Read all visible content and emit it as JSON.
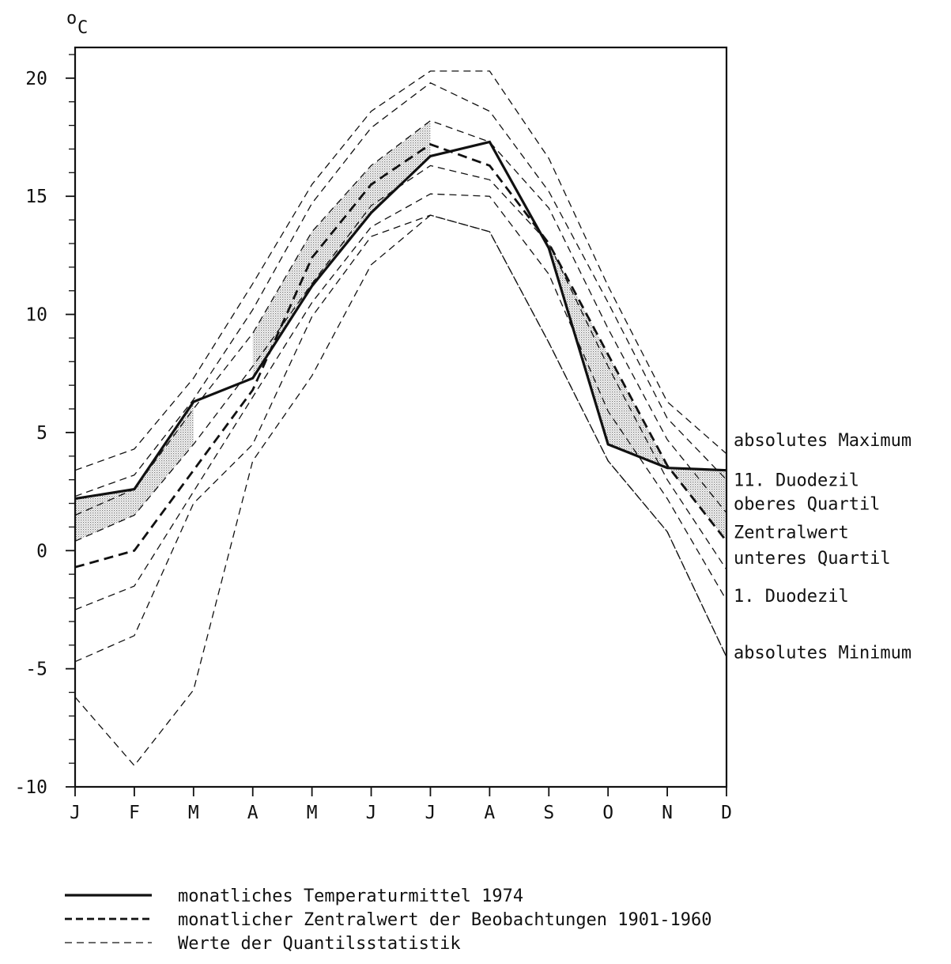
{
  "chart_data": {
    "type": "line",
    "unit_label": {
      "superscript": "o",
      "base": "C"
    },
    "categories": [
      "J",
      "F",
      "M",
      "A",
      "M",
      "J",
      "J",
      "A",
      "S",
      "O",
      "N",
      "D"
    ],
    "ylim": [
      -10,
      21.3
    ],
    "ytick_labels": [
      {
        "value": 20,
        "label": "20"
      },
      {
        "value": 15,
        "label": "15"
      },
      {
        "value": 10,
        "label": "10"
      },
      {
        "value": 5,
        "label": "5"
      },
      {
        "value": 0,
        "label": "0"
      },
      {
        "value": -5,
        "label": "-5"
      },
      {
        "value": -10,
        "label": "-10"
      }
    ],
    "series": [
      {
        "role": "mean-1974",
        "style": "solid",
        "values": [
          2.2,
          2.6,
          6.3,
          7.3,
          11.2,
          14.3,
          16.7,
          17.3,
          12.8,
          4.5,
          3.5,
          3.4
        ]
      },
      {
        "role": "median",
        "style": "bold-dashed",
        "values": [
          -0.7,
          0.0,
          3.4,
          6.8,
          12.4,
          15.5,
          17.2,
          16.3,
          13.0,
          8.3,
          3.6,
          0.4
        ]
      },
      {
        "role": "abs-max",
        "style": "thin-dashed",
        "values": [
          3.4,
          4.3,
          7.3,
          11.3,
          15.5,
          18.6,
          20.3,
          20.3,
          16.6,
          11.2,
          6.3,
          4.1
        ]
      },
      {
        "role": "d11",
        "style": "thin-dashed",
        "values": [
          2.3,
          3.2,
          6.4,
          10.2,
          14.7,
          17.9,
          19.8,
          18.6,
          15.2,
          10.5,
          5.6,
          3.0
        ]
      },
      {
        "role": "q3",
        "style": "thin-dashed",
        "values": [
          1.5,
          2.6,
          6.0,
          9.2,
          13.5,
          16.3,
          18.2,
          17.3,
          14.5,
          9.4,
          4.7,
          1.6
        ]
      },
      {
        "role": "q1",
        "style": "thin-dashed",
        "values": [
          0.4,
          1.5,
          4.5,
          7.8,
          11.3,
          14.6,
          16.3,
          15.7,
          13.0,
          7.8,
          3.0,
          -0.8
        ]
      },
      {
        "role": "d1",
        "style": "thin-dashed",
        "values": [
          -2.5,
          -1.5,
          2.5,
          6.5,
          10.5,
          13.7,
          15.1,
          15.0,
          11.7,
          5.9,
          2.2,
          -2.1
        ]
      },
      {
        "role": "abs-min",
        "style": "thin-dashed",
        "values": [
          -4.7,
          -3.6,
          2.0,
          4.5,
          9.9,
          13.3,
          14.2,
          13.5,
          8.8,
          3.8,
          0.8,
          -4.5
        ]
      },
      {
        "role": "abs-min-low",
        "style": "thin-dashed",
        "values": [
          -6.2,
          -9.1,
          -5.9,
          3.8,
          7.4,
          12.1,
          14.2,
          13.5,
          8.8,
          3.8,
          0.8,
          -4.5
        ]
      }
    ],
    "shaded_bands": [
      {
        "between": [
          "mean-1974",
          "q1"
        ],
        "months": [
          0,
          1,
          2
        ]
      },
      {
        "between": [
          "mean-1974",
          "q3"
        ],
        "months": [
          3,
          4,
          5,
          6
        ]
      },
      {
        "between": [
          "median",
          "mean-1974"
        ],
        "months": [
          8,
          9,
          10,
          11
        ]
      }
    ],
    "right_labels": [
      {
        "text": "absolutes Maximum",
        "value": 4.7
      },
      {
        "text": "11. Duodezil",
        "value": 3.0
      },
      {
        "text": "oberes Quartil",
        "value": 2.0
      },
      {
        "text": "Zentralwert",
        "value": 0.8
      },
      {
        "text": "unteres Quartil",
        "value": -0.3
      },
      {
        "text": "1. Duodezil",
        "value": -1.9
      },
      {
        "text": "absolutes Minimum",
        "value": -4.3
      }
    ],
    "legend": [
      {
        "style": "solid",
        "text": "monatliches Temperaturmittel 1974"
      },
      {
        "style": "bold-dashed",
        "text": "monatlicher Zentralwert der Beobachtungen 1901-1960"
      },
      {
        "style": "thin-dashed",
        "text": "Werte der Quantilsstatistik"
      }
    ],
    "legend_placement": "bottom",
    "grid": false
  }
}
